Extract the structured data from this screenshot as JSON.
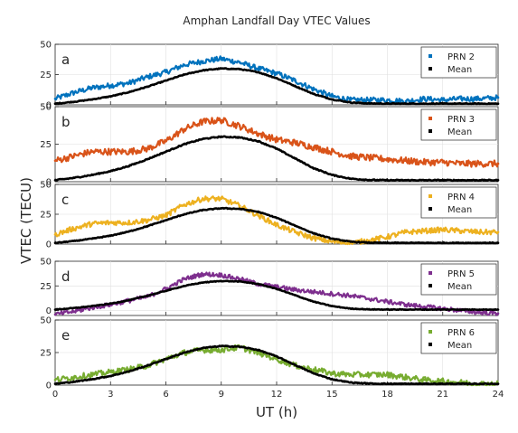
{
  "figure": {
    "title": "Amphan Landfall Day VTEC Values",
    "xlabel": "UT (h)",
    "ylabel": "VTEC (TECU)"
  },
  "colors": {
    "prn2": "#0072BD",
    "prn3": "#D95319",
    "prn4": "#EDB120",
    "prn5": "#7E2F8E",
    "prn6": "#77AC30",
    "mean": "#000000",
    "axis": "#262626",
    "grid": "#dfdfdf"
  },
  "chart_data": [
    {
      "type": "scatter",
      "panel": "a",
      "xlim": [
        0,
        24
      ],
      "ylim": [
        0,
        50
      ],
      "xticks": [
        0,
        3,
        6,
        9,
        12,
        15,
        18,
        21,
        24
      ],
      "yticks": [
        0,
        25,
        50
      ],
      "legend_position": "top-right",
      "grid": true,
      "series": [
        {
          "name": "PRN 2",
          "color": "#0072BD",
          "x": [
            0,
            1,
            2,
            3,
            4,
            5,
            6,
            7,
            8,
            9,
            10,
            11,
            12,
            13,
            14,
            15,
            16,
            17,
            18,
            19,
            20,
            21,
            22,
            23,
            24
          ],
          "y": [
            5,
            10,
            14,
            16,
            18,
            23,
            27,
            33,
            36,
            38,
            35,
            30,
            26,
            20,
            13,
            7,
            4,
            4,
            4,
            3,
            5,
            4,
            5,
            5,
            6
          ]
        },
        {
          "name": "Mean",
          "color": "#000000",
          "x": [
            0,
            1,
            2,
            3,
            4,
            5,
            6,
            7,
            8,
            9,
            10,
            11,
            12,
            13,
            14,
            15,
            16,
            17,
            18,
            19,
            20,
            21,
            22,
            23,
            24
          ],
          "y": [
            1,
            2.5,
            4.5,
            7,
            10.5,
            15,
            20,
            25,
            28.5,
            30,
            29.5,
            27,
            22,
            15.5,
            9,
            4.5,
            2,
            1.2,
            1,
            1,
            1,
            1,
            1,
            1,
            1
          ]
        }
      ]
    },
    {
      "type": "scatter",
      "panel": "b",
      "xlim": [
        0,
        24
      ],
      "ylim": [
        0,
        50
      ],
      "xticks": [
        0,
        3,
        6,
        9,
        12,
        15,
        18,
        21,
        24
      ],
      "yticks": [
        0,
        25,
        50
      ],
      "legend_position": "top-right",
      "grid": true,
      "series": [
        {
          "name": "PRN 3",
          "color": "#D95319",
          "x": [
            0,
            1,
            2,
            3,
            4,
            5,
            6,
            7,
            8,
            9,
            10,
            11,
            12,
            13,
            14,
            15,
            16,
            17,
            18,
            19,
            20,
            21,
            22,
            23,
            24
          ],
          "y": [
            14,
            17,
            20,
            20,
            20,
            22,
            27,
            35,
            40,
            41,
            37,
            32,
            28,
            26,
            23,
            20,
            17,
            16,
            15,
            14,
            13,
            13,
            12,
            12,
            12
          ]
        },
        {
          "name": "Mean",
          "color": "#000000",
          "x": [
            0,
            1,
            2,
            3,
            4,
            5,
            6,
            7,
            8,
            9,
            10,
            11,
            12,
            13,
            14,
            15,
            16,
            17,
            18,
            19,
            20,
            21,
            22,
            23,
            24
          ],
          "y": [
            1,
            2.5,
            4.5,
            7,
            10.5,
            15,
            20,
            25,
            28.5,
            30,
            29.5,
            27,
            22,
            15.5,
            9,
            4.5,
            2,
            1.2,
            1,
            1,
            1,
            1,
            1,
            1,
            1
          ]
        }
      ]
    },
    {
      "type": "scatter",
      "panel": "c",
      "xlim": [
        0,
        24
      ],
      "ylim": [
        0,
        50
      ],
      "xticks": [
        0,
        3,
        6,
        9,
        12,
        15,
        18,
        21,
        24
      ],
      "yticks": [
        0,
        25,
        50
      ],
      "legend_position": "top-right",
      "grid": true,
      "series": [
        {
          "name": "PRN 4",
          "color": "#EDB120",
          "x": [
            0,
            1,
            2,
            3,
            4,
            5,
            6,
            7,
            8,
            9,
            10,
            11,
            12,
            13,
            14,
            15,
            16,
            17,
            18,
            19,
            20,
            21,
            22,
            23,
            24
          ],
          "y": [
            8,
            13,
            17,
            18,
            18,
            20,
            24,
            33,
            38,
            38,
            32,
            24,
            16,
            10,
            5,
            2,
            1,
            3,
            6,
            10,
            11,
            12,
            11,
            10,
            10
          ]
        },
        {
          "name": "Mean",
          "color": "#000000",
          "x": [
            0,
            1,
            2,
            3,
            4,
            5,
            6,
            7,
            8,
            9,
            10,
            11,
            12,
            13,
            14,
            15,
            16,
            17,
            18,
            19,
            20,
            21,
            22,
            23,
            24
          ],
          "y": [
            1,
            2.5,
            4.5,
            7,
            10.5,
            15,
            20,
            25,
            28.5,
            30,
            29.5,
            27,
            22,
            15.5,
            9,
            4.5,
            2,
            1.2,
            1,
            1,
            1,
            1,
            1,
            1,
            1
          ]
        }
      ]
    },
    {
      "type": "scatter",
      "panel": "d",
      "xlim": [
        0,
        24
      ],
      "ylim": [
        -5,
        50
      ],
      "xticks": [
        0,
        3,
        6,
        9,
        12,
        15,
        18,
        21,
        24
      ],
      "yticks": [
        0,
        25,
        50
      ],
      "legend_position": "top-right",
      "grid": true,
      "series": [
        {
          "name": "PRN 5",
          "color": "#7E2F8E",
          "x": [
            0,
            1,
            2,
            3,
            4,
            5,
            6,
            7,
            8,
            9,
            10,
            11,
            12,
            13,
            14,
            15,
            16,
            17,
            18,
            19,
            20,
            21,
            22,
            23,
            24
          ],
          "y": [
            -4,
            -1,
            3,
            6,
            10,
            14,
            22,
            32,
            37,
            36,
            32,
            27,
            24,
            21,
            19,
            17,
            15,
            12,
            9,
            6,
            4,
            2,
            0,
            -2,
            -3
          ]
        },
        {
          "name": "Mean",
          "color": "#000000",
          "x": [
            0,
            1,
            2,
            3,
            4,
            5,
            6,
            7,
            8,
            9,
            10,
            11,
            12,
            13,
            14,
            15,
            16,
            17,
            18,
            19,
            20,
            21,
            22,
            23,
            24
          ],
          "y": [
            1,
            2.5,
            4.5,
            7,
            10.5,
            15,
            20,
            25,
            28.5,
            30,
            29.5,
            27,
            22,
            15.5,
            9,
            4.5,
            2,
            1.2,
            1,
            1,
            1,
            1,
            1,
            1,
            1
          ]
        }
      ]
    },
    {
      "type": "scatter",
      "panel": "e",
      "xlim": [
        0,
        24
      ],
      "ylim": [
        0,
        50
      ],
      "xticks": [
        0,
        3,
        6,
        9,
        12,
        15,
        18,
        21,
        24
      ],
      "yticks": [
        0,
        25,
        50
      ],
      "legend_position": "top-right",
      "grid": true,
      "series": [
        {
          "name": "PRN 6",
          "color": "#77AC30",
          "x": [
            0,
            1,
            2,
            3,
            4,
            5,
            6,
            7,
            8,
            9,
            10,
            11,
            12,
            13,
            14,
            15,
            16,
            17,
            18,
            19,
            20,
            21,
            22,
            23,
            24
          ],
          "y": [
            4,
            6,
            8,
            10,
            12,
            15,
            20,
            25,
            27,
            27,
            29,
            25,
            20,
            15,
            12,
            9,
            8,
            8,
            8,
            6,
            4,
            3,
            2,
            1,
            1
          ]
        },
        {
          "name": "Mean",
          "color": "#000000",
          "x": [
            0,
            1,
            2,
            3,
            4,
            5,
            6,
            7,
            8,
            9,
            10,
            11,
            12,
            13,
            14,
            15,
            16,
            17,
            18,
            19,
            20,
            21,
            22,
            23,
            24
          ],
          "y": [
            1,
            2.5,
            4.5,
            7,
            10.5,
            15,
            20,
            25,
            28.5,
            30,
            29.5,
            27,
            22,
            15.5,
            9,
            4.5,
            2,
            1.2,
            1,
            1,
            1,
            1,
            1,
            1,
            1
          ]
        }
      ]
    }
  ]
}
